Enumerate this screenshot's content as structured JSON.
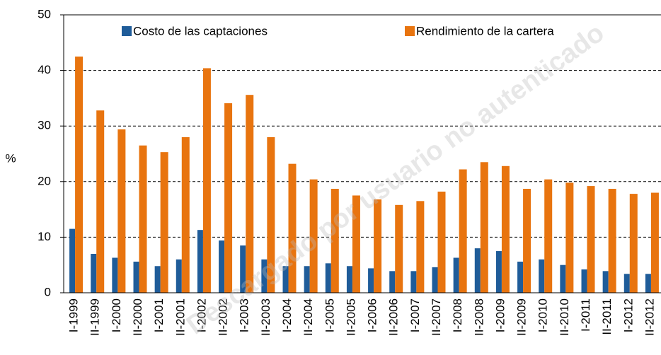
{
  "chart_data": {
    "type": "bar",
    "y_label": "%",
    "watermark": "Descargado por usuario no autenticado",
    "categories": [
      "I-1999",
      "II-1999",
      "I-2000",
      "II-2000",
      "I-2001",
      "II-2001",
      "I-2002",
      "II-2002",
      "I-2003",
      "II-2003",
      "I-2004",
      "II-2004",
      "I-2005",
      "II-2005",
      "I-2006",
      "II-2006",
      "I-2007",
      "II-2007",
      "I-2008",
      "II-2008",
      "I-2009",
      "II-2009",
      "I-2010",
      "II-2010",
      "I-2011",
      "II-2011",
      "I-2012",
      "II-2012"
    ],
    "series": [
      {
        "name": "Costo de las captaciones",
        "color": "#1f5c99",
        "values": [
          11.5,
          7,
          6.3,
          5.6,
          4.8,
          6,
          11.3,
          9.4,
          8.5,
          6,
          4.8,
          4.8,
          5.3,
          4.8,
          4.4,
          3.9,
          3.9,
          4.6,
          6.3,
          8,
          7.5,
          5.6,
          6,
          5,
          4.2,
          3.9,
          3.4,
          3.4
        ]
      },
      {
        "name": "Rendimiento de la cartera",
        "color": "#e8740f",
        "values": [
          42.5,
          32.8,
          29.4,
          26.5,
          25.3,
          28,
          40.4,
          34.1,
          35.6,
          28,
          23.2,
          20.4,
          18.7,
          17.5,
          16.8,
          15.8,
          16.5,
          18.2,
          22.2,
          23.5,
          22.8,
          18.7,
          20.4,
          19.8,
          19.2,
          18.7,
          17.8,
          18
        ]
      }
    ],
    "ylim": [
      0,
      50
    ],
    "yticks": [
      0,
      10,
      20,
      30,
      40,
      50
    ],
    "grid": true
  }
}
